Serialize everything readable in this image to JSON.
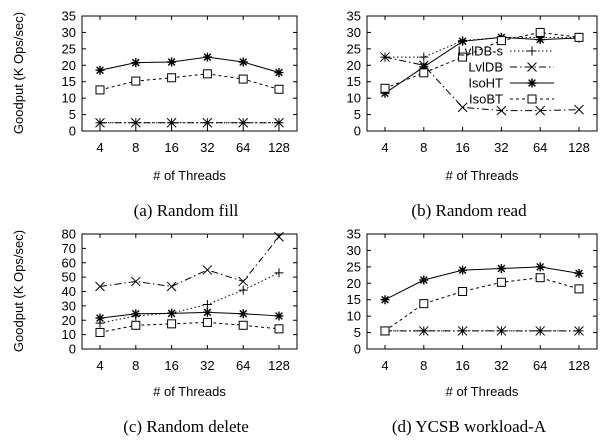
{
  "chart_data": [
    {
      "type": "line",
      "caption": "(a) Random fill",
      "xlabel": "# of Threads",
      "ylabel": "Goodput (K Ops/sec)",
      "categories": [
        "4",
        "8",
        "16",
        "32",
        "64",
        "128"
      ],
      "ylim": [
        0,
        35
      ],
      "yticks": [
        "0",
        "5",
        "10",
        "15",
        "20",
        "25",
        "30",
        "35"
      ],
      "series": [
        {
          "name": "LvlDB-s",
          "values": [
            2.5,
            2.5,
            2.5,
            2.5,
            2.5,
            2.5
          ]
        },
        {
          "name": "LvlDB",
          "values": [
            2.5,
            2.5,
            2.5,
            2.5,
            2.5,
            2.5
          ]
        },
        {
          "name": "IsoHT",
          "values": [
            18.5,
            20.8,
            21.0,
            22.5,
            21.0,
            17.8
          ]
        },
        {
          "name": "IsoBT",
          "values": [
            12.5,
            15.2,
            16.2,
            17.4,
            15.8,
            12.7
          ]
        }
      ]
    },
    {
      "type": "line",
      "caption": "(b) Random read",
      "xlabel": "# of Threads",
      "ylabel": "",
      "categories": [
        "4",
        "8",
        "16",
        "32",
        "64",
        "128"
      ],
      "ylim": [
        0,
        35
      ],
      "yticks": [
        "0",
        "5",
        "10",
        "15",
        "20",
        "25",
        "30",
        "35"
      ],
      "legend": "top-right",
      "series": [
        {
          "name": "LvlDB-s",
          "values": [
            22.5,
            22.5,
            27.5,
            28.5,
            28.5,
            28.5
          ]
        },
        {
          "name": "LvlDB",
          "values": [
            22.5,
            20.0,
            7.2,
            6.2,
            6.2,
            6.5
          ]
        },
        {
          "name": "IsoHT",
          "values": [
            11.5,
            19.5,
            27.3,
            28.5,
            27.8,
            28.3
          ]
        },
        {
          "name": "IsoBT",
          "values": [
            13.0,
            17.7,
            22.5,
            27.5,
            30.0,
            28.5
          ]
        }
      ]
    },
    {
      "type": "line",
      "caption": "(c) Random delete",
      "xlabel": "# of Threads",
      "ylabel": "Goodput (K Ops/sec)",
      "categories": [
        "4",
        "8",
        "16",
        "32",
        "64",
        "128"
      ],
      "ylim": [
        0,
        80
      ],
      "yticks": [
        "0",
        "10",
        "20",
        "30",
        "40",
        "50",
        "60",
        "70",
        "80"
      ],
      "series": [
        {
          "name": "LvlDB-s",
          "values": [
            18.0,
            23.0,
            25.0,
            31.0,
            41.0,
            53.0
          ]
        },
        {
          "name": "LvlDB",
          "values": [
            43.5,
            47.0,
            43.5,
            55.0,
            47.0,
            78.0
          ]
        },
        {
          "name": "IsoHT",
          "values": [
            21.5,
            24.5,
            24.8,
            25.5,
            24.5,
            23.0
          ]
        },
        {
          "name": "IsoBT",
          "values": [
            11.5,
            16.5,
            17.5,
            18.5,
            16.5,
            14.0
          ]
        }
      ]
    },
    {
      "type": "line",
      "caption": "(d) YCSB workload-A",
      "xlabel": "# of Threads",
      "ylabel": "",
      "categories": [
        "4",
        "8",
        "16",
        "32",
        "64",
        "128"
      ],
      "ylim": [
        0,
        35
      ],
      "yticks": [
        "0",
        "5",
        "10",
        "15",
        "20",
        "25",
        "30",
        "35"
      ],
      "series": [
        {
          "name": "LvlDB-s",
          "values": [
            5.5,
            5.5,
            5.5,
            5.5,
            5.5,
            5.5
          ]
        },
        {
          "name": "LvlDB",
          "values": [
            5.5,
            5.5,
            5.5,
            5.5,
            5.5,
            5.5
          ]
        },
        {
          "name": "IsoHT",
          "values": [
            15.0,
            21.0,
            24.0,
            24.5,
            25.0,
            23.0
          ]
        },
        {
          "name": "IsoBT",
          "values": [
            5.5,
            13.8,
            17.5,
            20.3,
            21.7,
            18.3
          ]
        }
      ]
    }
  ]
}
